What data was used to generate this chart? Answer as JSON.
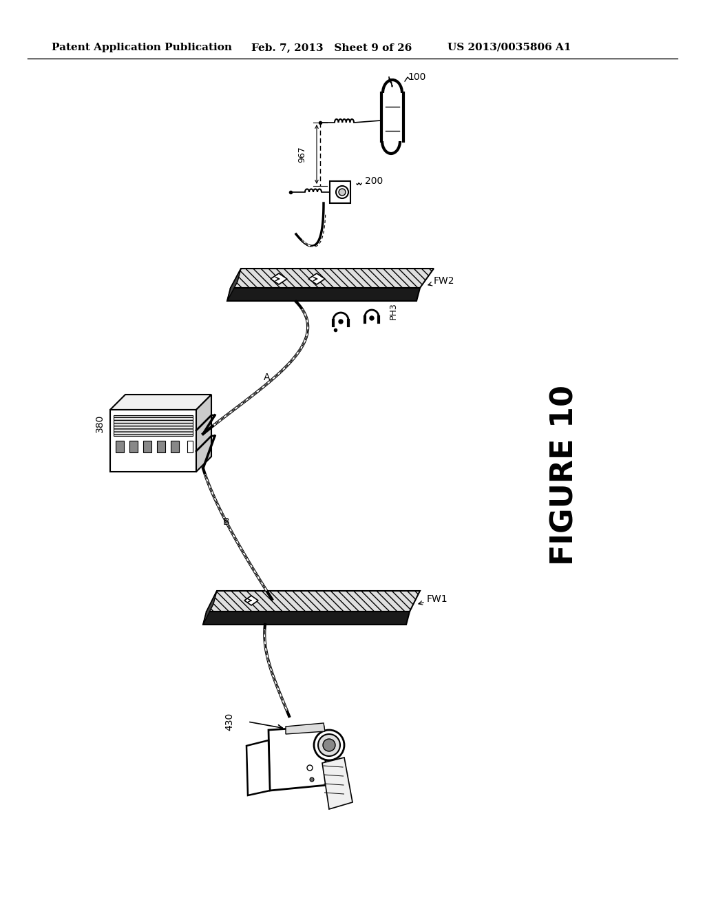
{
  "title": "FIGURE 10",
  "header_left": "Patent Application Publication",
  "header_mid": "Feb. 7, 2013   Sheet 9 of 26",
  "header_right": "US 2013/0035806 A1",
  "bg_color": "#ffffff",
  "label_100": "100",
  "label_200": "200",
  "label_967": "967",
  "label_380": "380",
  "label_FW2": "FW2",
  "label_PH3": "PH3",
  "label_FW1": "FW1",
  "label_430": "430",
  "label_A": "A",
  "label_B": "B",
  "header_fontsize": 11,
  "line_color": "#000000",
  "figure10_fontsize": 32
}
